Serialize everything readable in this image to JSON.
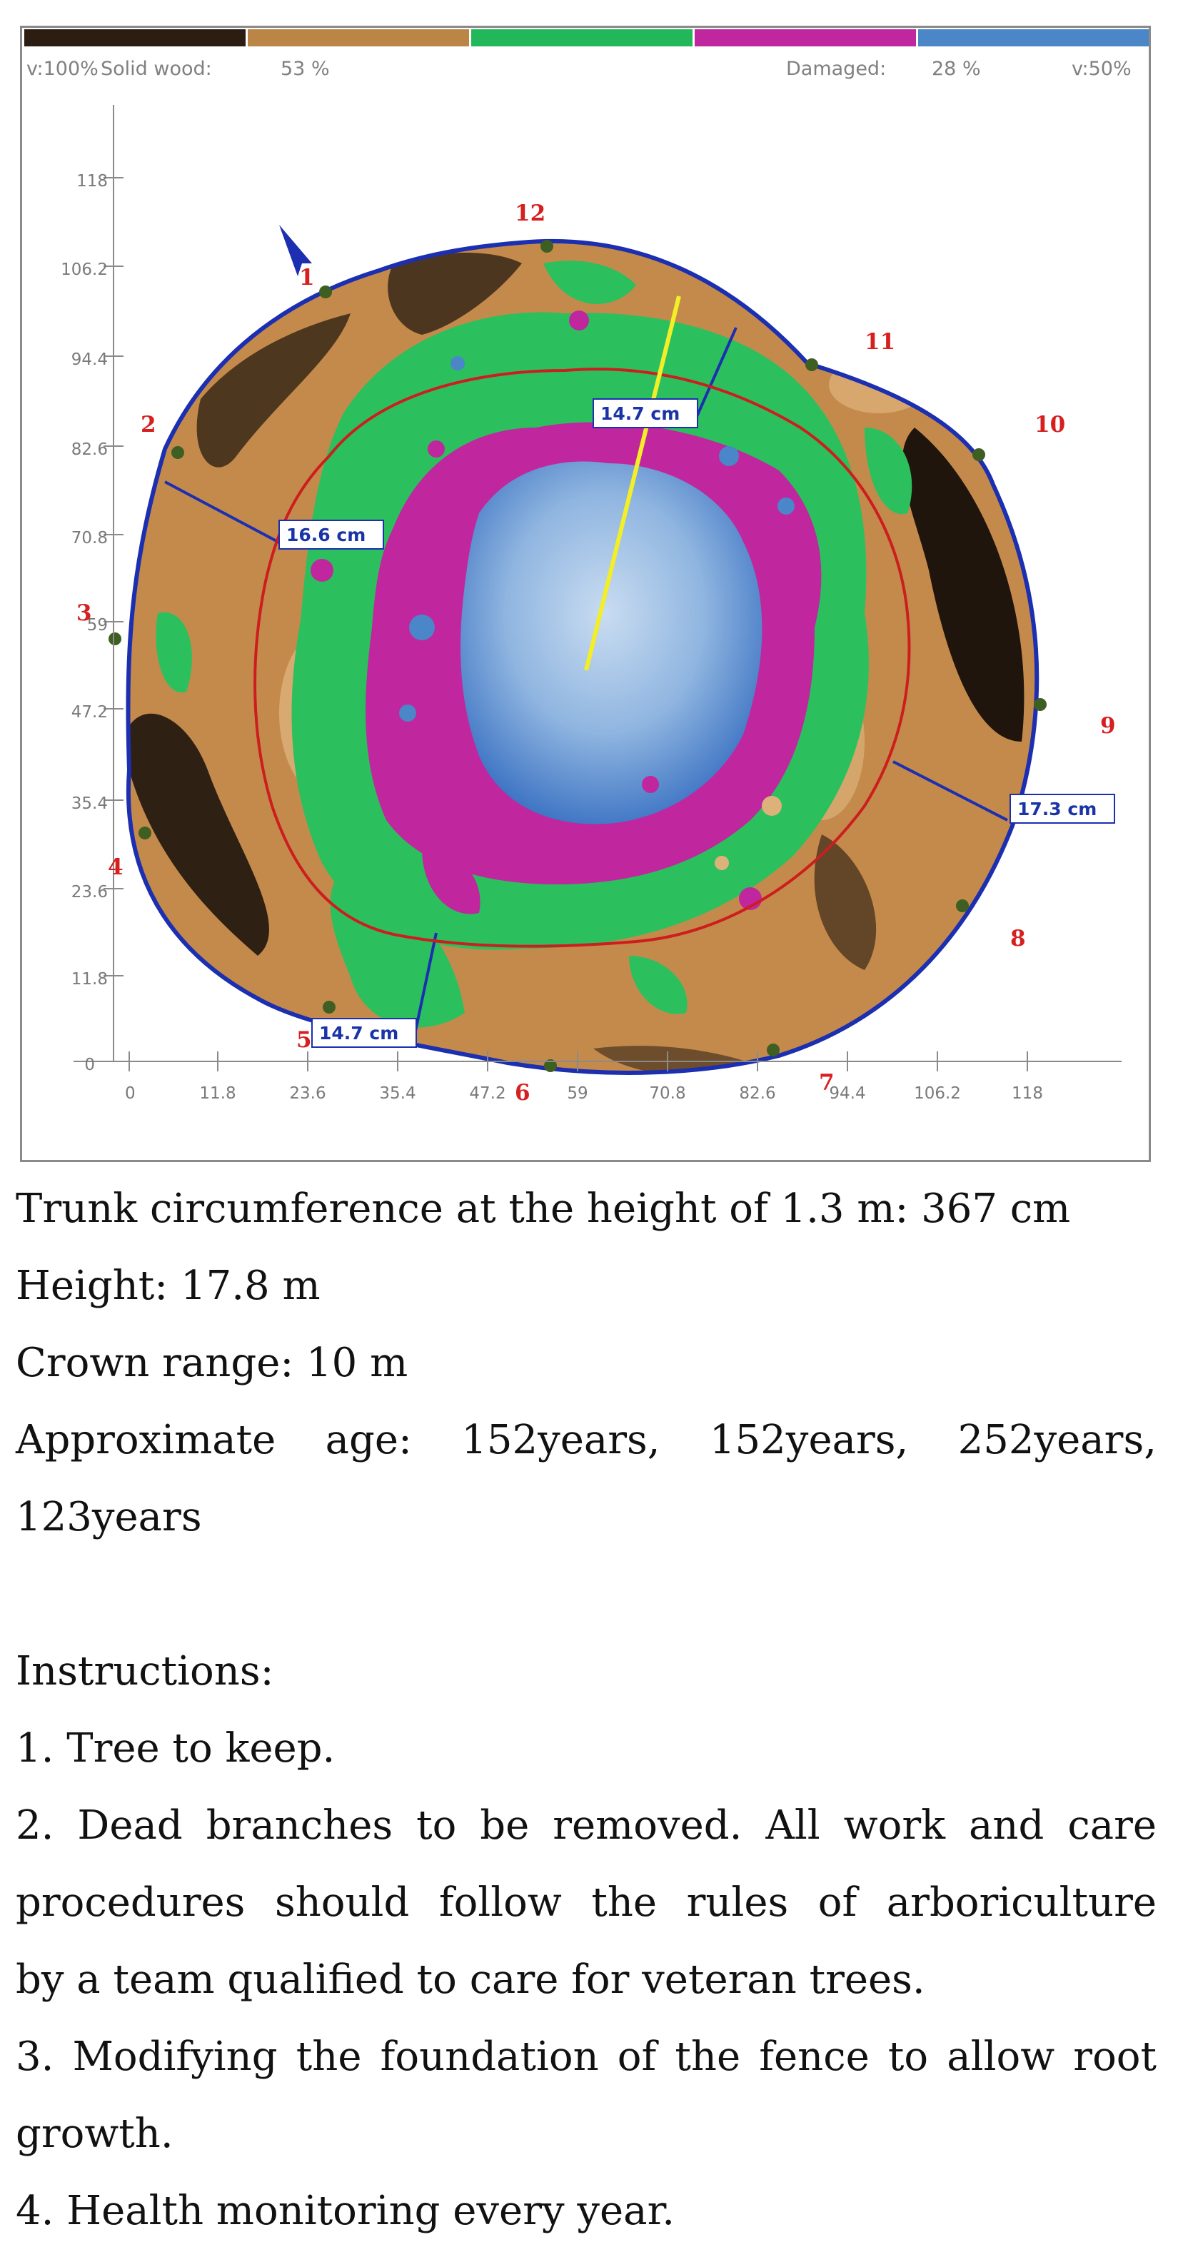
{
  "tomogram": {
    "scale": {
      "left_velocity": "v:100%",
      "solid_label": "Solid wood:",
      "solid_value": "53 %",
      "damaged_label": "Damaged:",
      "damaged_value": "28 %",
      "right_velocity": "v:50%",
      "colors": [
        "#2b1d12",
        "#bb8545",
        "#22b85a",
        "#c0269e",
        "#4a86c8"
      ]
    },
    "y_ticks": [
      "0",
      "11.8",
      "23.6",
      "35.4",
      "47.2",
      "59",
      "70.8",
      "82.6",
      "94.4",
      "106.2",
      "118"
    ],
    "x_ticks": [
      "0",
      "11.8",
      "23.6",
      "35.4",
      "47.2",
      "59",
      "70.8",
      "82.6",
      "94.4",
      "106.2",
      "118"
    ],
    "sensors": [
      "1",
      "2",
      "3",
      "4",
      "5",
      "6",
      "7",
      "8",
      "9",
      "10",
      "11",
      "12"
    ],
    "measurements": [
      "14.7 cm",
      "16.6 cm",
      "17.3 cm",
      "14.7 cm"
    ],
    "colors": {
      "outline": "#1b2fb0",
      "boundary": "#cc1e1e",
      "crack": "#f2ee28",
      "sensor_dot": "#3f5e22"
    }
  },
  "report": {
    "circumference": "Trunk circumference at the height of 1.3 m: 367 cm",
    "height": "Height: 17.8 m",
    "crown": "Crown range: 10 m",
    "age_line1": "Approximate age: 152years, 152years, 252years,",
    "age_line2": "123years",
    "instructions_title": "Instructions:",
    "item1": "1. Tree to keep.",
    "item2_line1": "2. Dead branches to be removed. All work and care",
    "item2_line2": "procedures should follow the rules of arboriculture",
    "item2_line3": "by a team qualified to care for veteran trees.",
    "item3_line1": "3. Modifying the foundation of the fence to allow root",
    "item3_line2": "growth.",
    "item4": "4. Health monitoring every year."
  }
}
